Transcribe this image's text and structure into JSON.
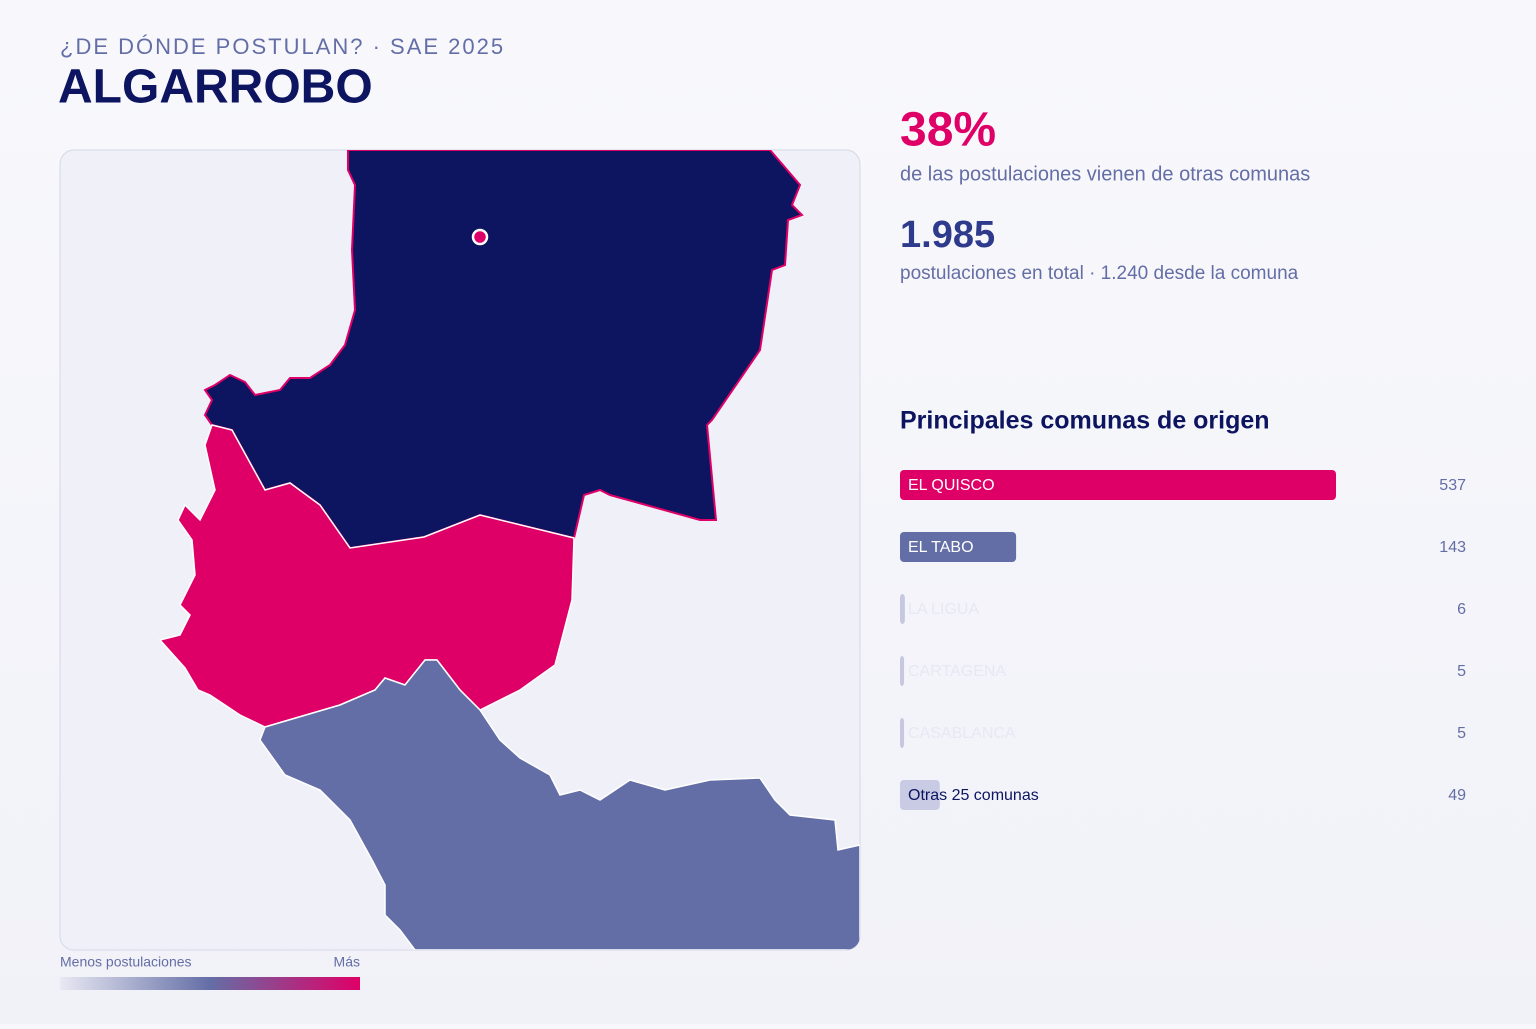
{
  "header": {
    "kicker": "¿DE DÓNDE POSTULAN? · SAE 2025",
    "title": "ALGARROBO"
  },
  "stats": [
    {
      "value": "38%",
      "label": "de las postulaciones vienen de otras comunas"
    },
    {
      "value": "1.985",
      "label": "postulaciones en total · 1.240 desde la comuna"
    }
  ],
  "legend": {
    "low": "Menos postulaciones",
    "high": "Más"
  },
  "chart_data": {
    "type": "bar",
    "title": "Principales comunas de origen",
    "categories": [
      "EL QUISCO",
      "EL TABO",
      "LA LIGUA",
      "CARTAGENA",
      "CASABLANCA",
      "Otras 25 comunas"
    ],
    "values": [
      537,
      143,
      6,
      5,
      5,
      49
    ],
    "colors": [
      "#df0067",
      "#646ea6",
      "#c5c8e0",
      "#c5c8e0",
      "#c5c8e0",
      "#c8cbe3"
    ],
    "label_colors": [
      "#ffffff",
      "#ffffff",
      "#e6e8f3",
      "#e6e8f3",
      "#e6e8f3",
      "#0d1460"
    ]
  }
}
